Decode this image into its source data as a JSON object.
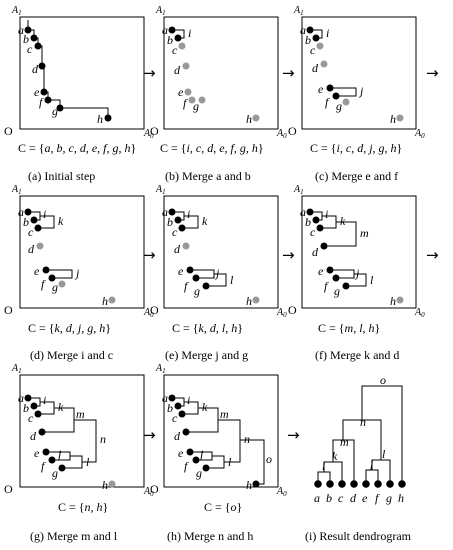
{
  "axes": {
    "y": "A",
    "y_sub": "1",
    "x": "A",
    "x_sub": "0",
    "origin": "O"
  },
  "arrow_glyph": "→",
  "points": [
    "a",
    "b",
    "c",
    "d",
    "e",
    "f",
    "g",
    "h"
  ],
  "panels": [
    {
      "caption": "(a) Initial step",
      "set_prefix": "C = {",
      "set_items": "a, b, c, d, e, f, g, h",
      "set_suffix": "}",
      "merge_labels": []
    },
    {
      "caption": "(b) Merge a and b",
      "set_prefix": "C = {",
      "set_items": "i, c, d, e, f, g, h",
      "set_suffix": "}",
      "merge_labels": [
        "i"
      ]
    },
    {
      "caption": "(c) Merge e and f",
      "set_prefix": "C = {",
      "set_items": "i, c, d, j, g, h",
      "set_suffix": "}",
      "merge_labels": [
        "i",
        "j"
      ]
    },
    {
      "caption": "(d) Merge i and c",
      "set_prefix": "C = {",
      "set_items": "k, d, j, g, h",
      "set_suffix": "}",
      "merge_labels": [
        "i",
        "j",
        "k"
      ]
    },
    {
      "caption": "(e) Merge j and g",
      "set_prefix": "C = {",
      "set_items": "k, d, l, h",
      "set_suffix": "}",
      "merge_labels": [
        "i",
        "j",
        "k",
        "l"
      ]
    },
    {
      "caption": "(f) Merge k and d",
      "set_prefix": "C = {",
      "set_items": "m, l, h",
      "set_suffix": "}",
      "merge_labels": [
        "i",
        "j",
        "k",
        "l",
        "m"
      ]
    },
    {
      "caption": "(g) Merge m and l",
      "set_prefix": "C = {",
      "set_items": "n, h",
      "set_suffix": "}",
      "merge_labels": [
        "i",
        "j",
        "k",
        "l",
        "m",
        "n"
      ]
    },
    {
      "caption": "(h) Merge n and h",
      "set_prefix": "C = {",
      "set_items": "o",
      "set_suffix": "}",
      "merge_labels": [
        "i",
        "j",
        "k",
        "l",
        "m",
        "n",
        "o"
      ]
    }
  ],
  "dendrogram": {
    "caption": "(i) Result dendrogram",
    "leaves": [
      "a",
      "b",
      "c",
      "d",
      "e",
      "f",
      "g",
      "h"
    ],
    "merge_labels": [
      "i",
      "k",
      "m",
      "n",
      "o",
      "j",
      "l"
    ]
  }
}
